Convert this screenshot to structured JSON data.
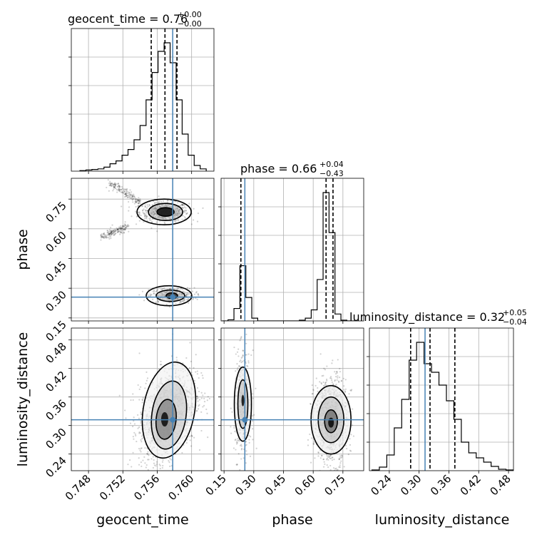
{
  "chart_data": {
    "type": "corner",
    "parameters": [
      "geocent_time",
      "phase",
      "luminosity_distance"
    ],
    "truth_color": "#4682b4",
    "truths": {
      "geocent_time": 0.7578,
      "phase": 0.255,
      "luminosity_distance": 0.312
    },
    "panels": {
      "geocent_time": {
        "title_main": "geocent_time = 0.76",
        "title_plus": "+0.00",
        "title_minus": "−0.00",
        "xlim": [
          0.746,
          0.7626
        ],
        "ticks": [
          0.748,
          0.752,
          0.756,
          0.76
        ],
        "tick_labels": [
          "0.748",
          "0.752",
          "0.756",
          "0.760"
        ],
        "quantiles": [
          0.7553,
          0.7569,
          0.7583
        ],
        "hist": {
          "edges": [
            0.747,
            0.7477,
            0.7484,
            0.7491,
            0.7498,
            0.7505,
            0.7512,
            0.7519,
            0.7526,
            0.7533,
            0.754,
            0.7547,
            0.7554,
            0.7561,
            0.7568,
            0.7575,
            0.7582,
            0.7589,
            0.7596,
            0.7603,
            0.761,
            0.7617
          ],
          "counts": [
            1,
            2,
            3,
            4,
            7,
            13,
            18,
            28,
            38,
            55,
            80,
            125,
            173,
            210,
            225,
            190,
            125,
            65,
            28,
            10,
            4
          ]
        }
      },
      "phase": {
        "title_main": "phase = 0.66",
        "title_plus": "+0.04",
        "title_minus": "−0.43",
        "ylim": [
          0.135,
          0.855
        ],
        "yticks": [
          0.15,
          0.3,
          0.45,
          0.6,
          0.75
        ],
        "ytick_labels": [
          "0.15",
          "0.30",
          "0.45",
          "0.60",
          "0.75"
        ],
        "xlim": [
          0.135,
          0.855
        ],
        "xticks": [
          0.15,
          0.3,
          0.45,
          0.6,
          0.75
        ],
        "xtick_labels": [
          "0.15",
          "0.30",
          "0.45",
          "0.60",
          "0.75"
        ],
        "quantiles": [
          0.235,
          0.665,
          0.7
        ],
        "hist": {
          "edges": [
            0.14,
            0.17,
            0.2,
            0.23,
            0.26,
            0.29,
            0.32,
            0.35,
            0.38,
            0.41,
            0.44,
            0.47,
            0.5,
            0.53,
            0.56,
            0.59,
            0.62,
            0.65,
            0.68,
            0.71,
            0.74,
            0.77,
            0.8,
            0.83
          ],
          "counts": [
            0,
            8,
            90,
            400,
            170,
            20,
            0,
            0,
            0,
            0,
            0,
            0,
            0,
            5,
            20,
            80,
            300,
            930,
            640,
            50,
            5,
            0,
            0
          ]
        }
      },
      "luminosity_distance": {
        "title_main": "luminosity_distance = 0.32",
        "title_plus": "+0.05",
        "title_minus": "−0.04",
        "ylim": [
          0.205,
          0.505
        ],
        "yticks": [
          0.24,
          0.3,
          0.36,
          0.42,
          0.48
        ],
        "ytick_labels": [
          "0.24",
          "0.30",
          "0.36",
          "0.42",
          "0.48"
        ],
        "xlim": [
          0.2,
          0.49
        ],
        "xticks": [
          0.24,
          0.3,
          0.36,
          0.42,
          0.48
        ],
        "xtick_labels": [
          "0.24",
          "0.30",
          "0.36",
          "0.42",
          "0.48"
        ],
        "quantiles": [
          0.283,
          0.322,
          0.372
        ],
        "hist": {
          "edges": [
            0.205,
            0.22,
            0.235,
            0.25,
            0.265,
            0.28,
            0.295,
            0.31,
            0.325,
            0.34,
            0.355,
            0.37,
            0.385,
            0.4,
            0.415,
            0.43,
            0.445,
            0.46,
            0.475,
            0.49
          ],
          "counts": [
            1,
            5,
            22,
            60,
            100,
            155,
            180,
            150,
            138,
            120,
            98,
            72,
            40,
            25,
            18,
            12,
            6,
            2,
            1
          ]
        }
      }
    },
    "axis_labels": {
      "x": [
        "geocent_time",
        "phase",
        "luminosity_distance"
      ],
      "y": [
        "phase",
        "luminosity_distance"
      ]
    },
    "density": {
      "phase_vs_geocent_time": [
        {
          "x": 0.7568,
          "y": 0.685,
          "sx": 0.0011,
          "sy": 0.022,
          "w": 0.62
        },
        {
          "x": 0.7577,
          "y": 0.262,
          "sx": 0.001,
          "sy": 0.018,
          "w": 0.38
        }
      ],
      "phase_arm": {
        "x_start": 0.7495,
        "y_start": 0.56,
        "x_end": 0.7525,
        "y_end": 0.61,
        "x2_start": 0.7505,
        "y2_start": 0.83,
        "x2_end": 0.754,
        "y2_end": 0.735
      },
      "ld_vs_geocent_time": {
        "x": 0.7572,
        "y": 0.325,
        "sx": 0.0011,
        "sy": 0.04,
        "rho": 0.35
      },
      "ld_vs_phase": [
        {
          "x": 0.245,
          "y": 0.345,
          "sx": 0.018,
          "sy": 0.045,
          "w": 0.3
        },
        {
          "x": 0.69,
          "y": 0.312,
          "sx": 0.035,
          "sy": 0.038,
          "w": 0.7
        }
      ]
    }
  }
}
